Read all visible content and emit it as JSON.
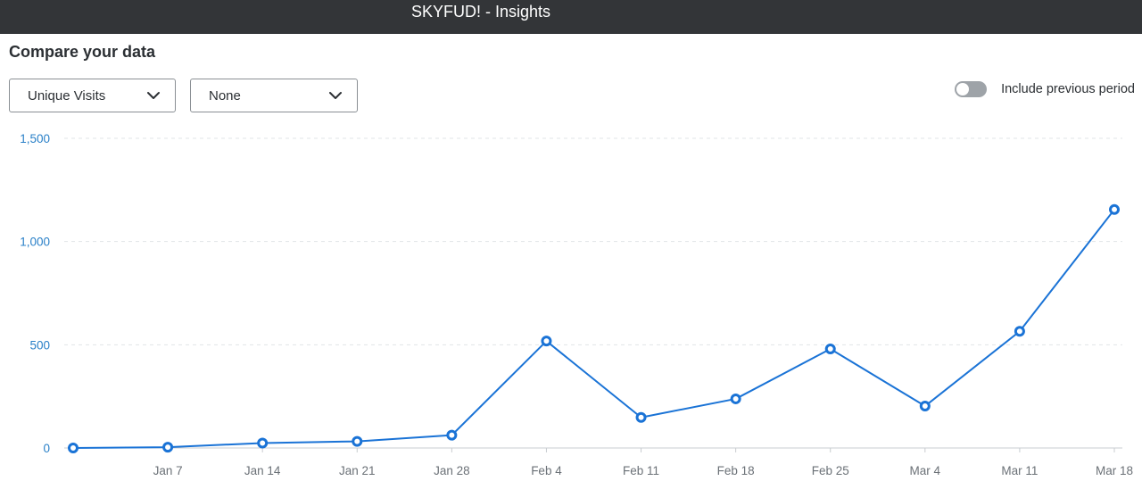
{
  "window": {
    "title": "SKYFUD! - Insights"
  },
  "page": {
    "title": "Compare your data"
  },
  "controls": {
    "metric_select": {
      "value": "Unique Visits"
    },
    "compare_select": {
      "value": "None"
    },
    "previous_period_toggle": {
      "label": "Include previous period",
      "on": false
    }
  },
  "colors": {
    "accent": "#1a73d6",
    "axis_text": "#2a80c8",
    "tick_text": "#6b7177",
    "titlebar": "#333538"
  },
  "chart_data": {
    "type": "line",
    "x": [
      "",
      "Jan 7",
      "Jan 14",
      "Jan 21",
      "Jan 28",
      "Feb 4",
      "Feb 11",
      "Feb 18",
      "Feb 25",
      "Mar 4",
      "Mar 11",
      "Mar 18"
    ],
    "series": [
      {
        "values": [
          0,
          4,
          24,
          32,
          62,
          518,
          148,
          238,
          480,
          203,
          565,
          1155
        ]
      }
    ],
    "ylim": [
      0,
      1500
    ],
    "yticks": [
      0,
      500,
      1000,
      1500
    ],
    "ytick_labels": [
      "0",
      "500",
      "1,000",
      "1,500"
    ],
    "grid": true
  }
}
